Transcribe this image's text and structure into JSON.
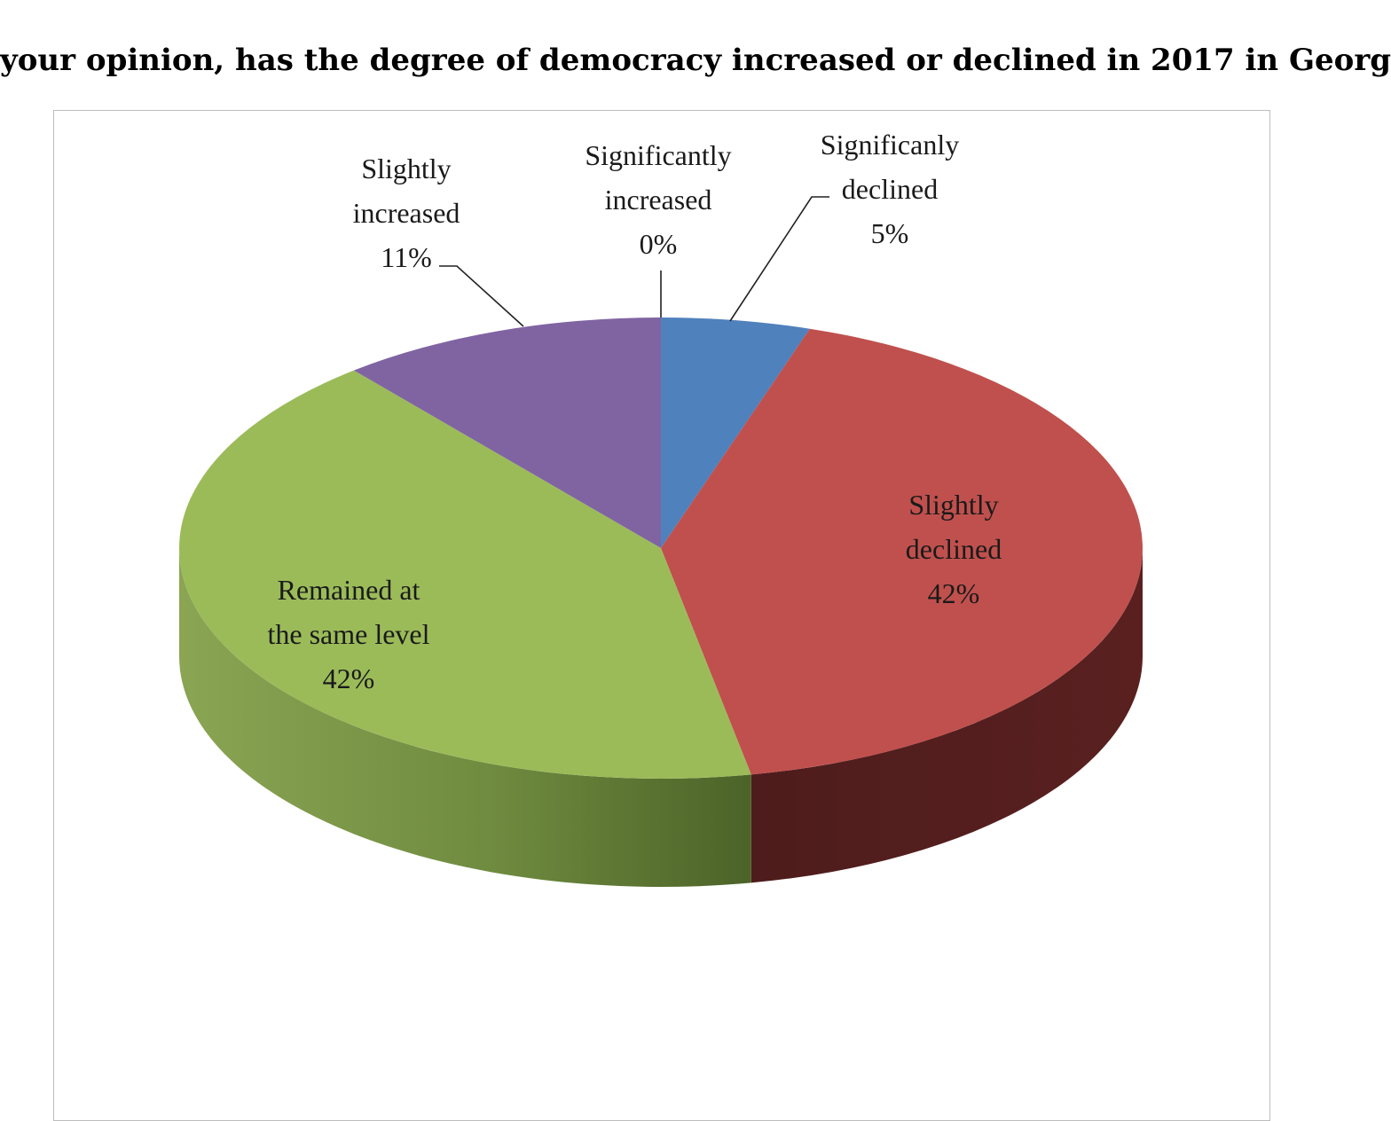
{
  "chart_data": {
    "type": "pie",
    "title": "your opinion, has the degree of democracy increased or declined in 2017 in Georg",
    "slices": [
      {
        "label": [
          "Significantly",
          "increased"
        ],
        "value": 0,
        "display": "0%",
        "color": "#4f81bd"
      },
      {
        "label": [
          "Significanly",
          "declined"
        ],
        "value": 5,
        "display": "5%",
        "color": "#4f81bd"
      },
      {
        "label": [
          "Slightly",
          "declined"
        ],
        "value": 42,
        "display": "42%",
        "color": "#c0504d"
      },
      {
        "label": [
          "Remained at",
          "the same level"
        ],
        "value": 42,
        "display": "42%",
        "color": "#9bbb59"
      },
      {
        "label": [
          "Slightly",
          "increased"
        ],
        "value": 11,
        "display": "11%",
        "color": "#8064a2"
      }
    ]
  }
}
